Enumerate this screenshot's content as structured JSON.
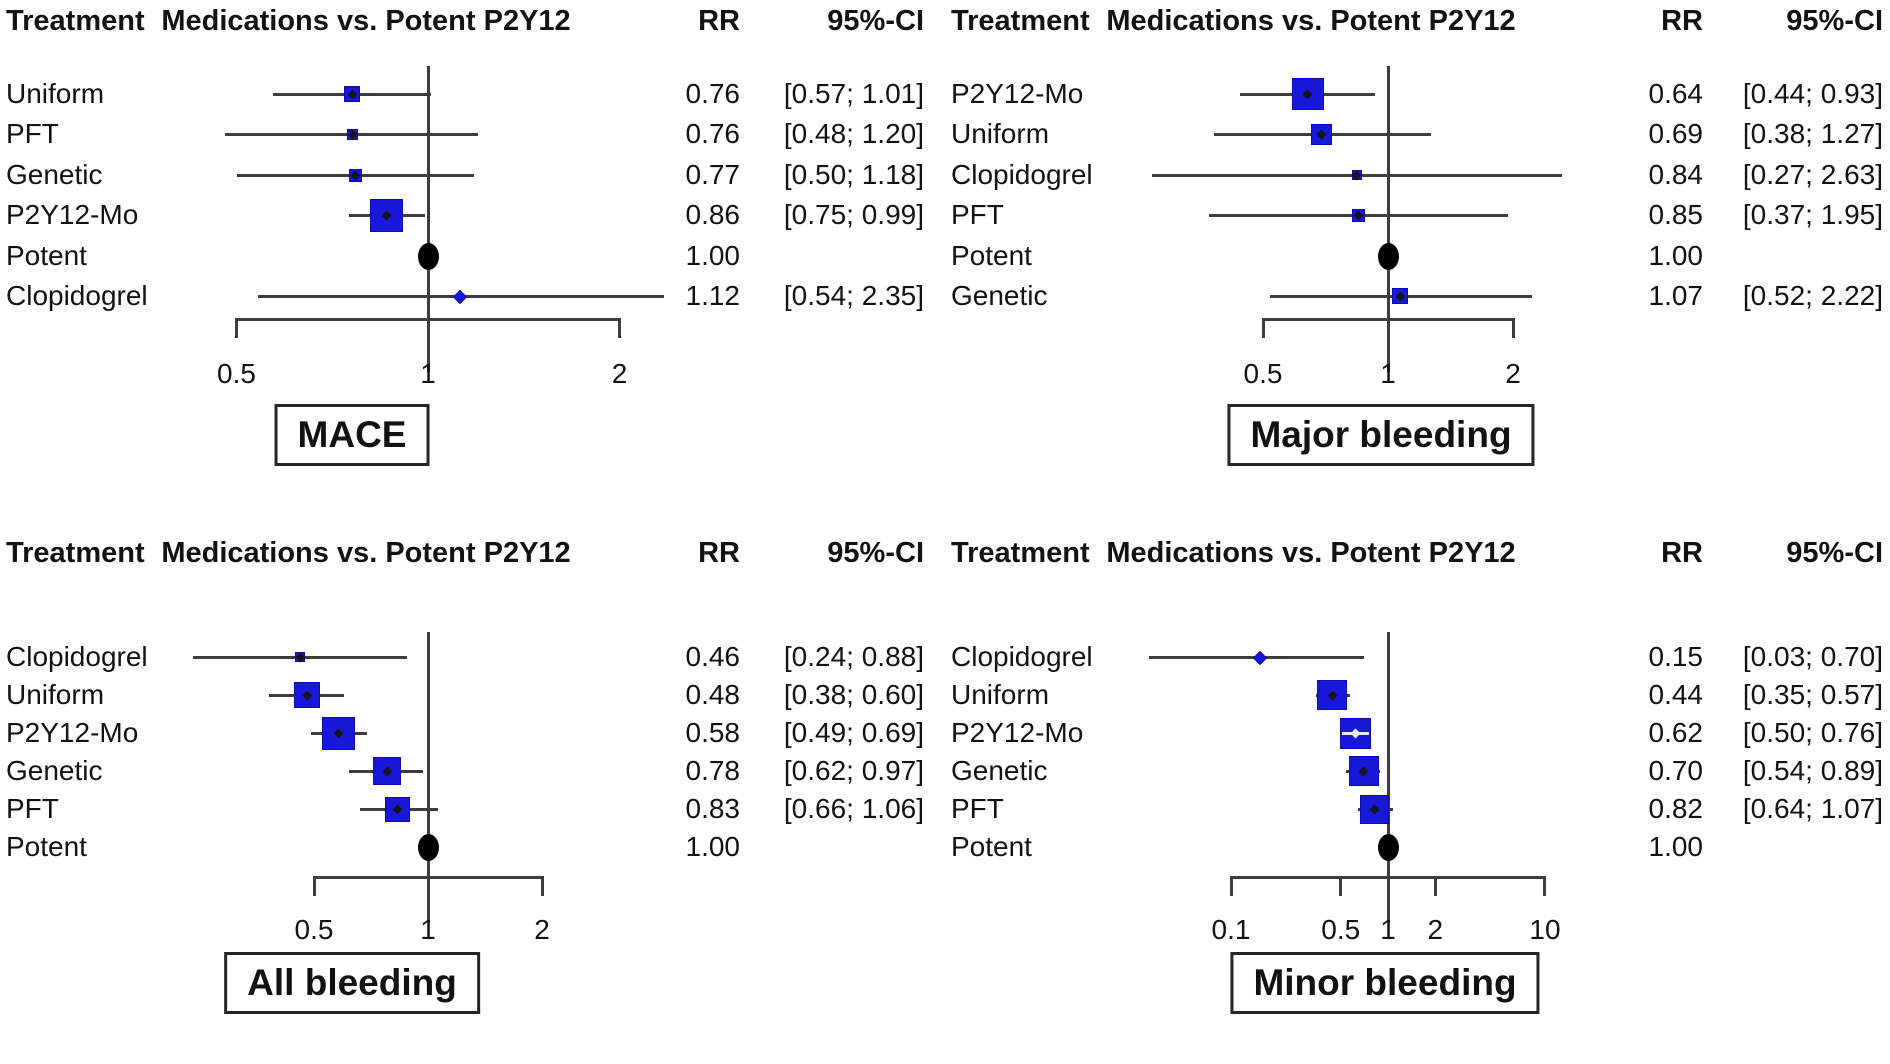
{
  "colors": {
    "marker_blue": "#1818d8",
    "marker_border": "#0c0cae",
    "line_gray": "#3d3d3d",
    "reference_black": "#000000",
    "text": "#121212",
    "background": "#ffffff"
  },
  "header": {
    "treatment": "Treatment",
    "comparison": "Medications vs. Potent P2Y12",
    "rr": "RR",
    "ci": "95%-CI"
  },
  "chart_data": [
    {
      "type": "forest",
      "title": "MACE",
      "axis": {
        "scale": "log",
        "ref_line": 1,
        "ticks": [
          0.5,
          1,
          2
        ],
        "tick_labels": [
          "0.5",
          "1",
          "2"
        ],
        "range": [
          0.5,
          2
        ]
      },
      "rows": [
        {
          "treatment": "Uniform",
          "rr": 0.76,
          "ci_low": 0.57,
          "ci_high": 1.01,
          "rr_label": "0.76",
          "ci_label": "[0.57; 1.01]",
          "marker_size": 16,
          "reference": false
        },
        {
          "treatment": "PFT",
          "rr": 0.76,
          "ci_low": 0.48,
          "ci_high": 1.2,
          "rr_label": "0.76",
          "ci_label": "[0.48; 1.20]",
          "marker_size": 11,
          "reference": false
        },
        {
          "treatment": "Genetic",
          "rr": 0.77,
          "ci_low": 0.5,
          "ci_high": 1.18,
          "rr_label": "0.77",
          "ci_label": "[0.50; 1.18]",
          "marker_size": 13,
          "reference": false
        },
        {
          "treatment": "P2Y12-Mo",
          "rr": 0.86,
          "ci_low": 0.75,
          "ci_high": 0.99,
          "rr_label": "0.86",
          "ci_label": "[0.75; 0.99]",
          "marker_size": 33,
          "reference": false
        },
        {
          "treatment": "Potent",
          "rr": 1.0,
          "ci_low": null,
          "ci_high": null,
          "rr_label": "1.00",
          "ci_label": "",
          "marker_size": null,
          "reference": true
        },
        {
          "treatment": "Clopidogrel",
          "rr": 1.12,
          "ci_low": 0.54,
          "ci_high": 2.35,
          "rr_label": "1.12",
          "ci_label": "[0.54; 2.35]",
          "marker_size": 8,
          "reference": false
        }
      ]
    },
    {
      "type": "forest",
      "title": "Major bleeding",
      "axis": {
        "scale": "log",
        "ref_line": 1,
        "ticks": [
          0.5,
          1,
          2
        ],
        "tick_labels": [
          "0.5",
          "1",
          "2"
        ],
        "range": [
          0.5,
          2
        ]
      },
      "rows": [
        {
          "treatment": "P2Y12-Mo",
          "rr": 0.64,
          "ci_low": 0.44,
          "ci_high": 0.93,
          "rr_label": "0.64",
          "ci_label": "[0.44; 0.93]",
          "marker_size": 32,
          "reference": false
        },
        {
          "treatment": "Uniform",
          "rr": 0.69,
          "ci_low": 0.38,
          "ci_high": 1.27,
          "rr_label": "0.69",
          "ci_label": "[0.38; 1.27]",
          "marker_size": 21,
          "reference": false
        },
        {
          "treatment": "Clopidogrel",
          "rr": 0.84,
          "ci_low": 0.27,
          "ci_high": 2.63,
          "rr_label": "0.84",
          "ci_label": "[0.27; 2.63]",
          "marker_size": 10,
          "reference": false
        },
        {
          "treatment": "PFT",
          "rr": 0.85,
          "ci_low": 0.37,
          "ci_high": 1.95,
          "rr_label": "0.85",
          "ci_label": "[0.37; 1.95]",
          "marker_size": 13,
          "reference": false
        },
        {
          "treatment": "Potent",
          "rr": 1.0,
          "ci_low": null,
          "ci_high": null,
          "rr_label": "1.00",
          "ci_label": "",
          "marker_size": null,
          "reference": true
        },
        {
          "treatment": "Genetic",
          "rr": 1.07,
          "ci_low": 0.52,
          "ci_high": 2.22,
          "rr_label": "1.07",
          "ci_label": "[0.52; 2.22]",
          "marker_size": 16,
          "reference": false
        }
      ]
    },
    {
      "type": "forest",
      "title": "All bleeding",
      "axis": {
        "scale": "log",
        "ref_line": 1,
        "ticks": [
          0.5,
          1,
          2
        ],
        "tick_labels": [
          "0.5",
          "1",
          "2"
        ],
        "range": [
          0.5,
          2
        ]
      },
      "rows": [
        {
          "treatment": "Clopidogrel",
          "rr": 0.46,
          "ci_low": 0.24,
          "ci_high": 0.88,
          "rr_label": "0.46",
          "ci_label": "[0.24; 0.88]",
          "marker_size": 10,
          "reference": false
        },
        {
          "treatment": "Uniform",
          "rr": 0.48,
          "ci_low": 0.38,
          "ci_high": 0.6,
          "rr_label": "0.48",
          "ci_label": "[0.38; 0.60]",
          "marker_size": 26,
          "reference": false
        },
        {
          "treatment": "P2Y12-Mo",
          "rr": 0.58,
          "ci_low": 0.49,
          "ci_high": 0.69,
          "rr_label": "0.58",
          "ci_label": "[0.49; 0.69]",
          "marker_size": 33,
          "reference": false
        },
        {
          "treatment": "Genetic",
          "rr": 0.78,
          "ci_low": 0.62,
          "ci_high": 0.97,
          "rr_label": "0.78",
          "ci_label": "[0.62; 0.97]",
          "marker_size": 28,
          "reference": false
        },
        {
          "treatment": "PFT",
          "rr": 0.83,
          "ci_low": 0.66,
          "ci_high": 1.06,
          "rr_label": "0.83",
          "ci_label": "[0.66; 1.06]",
          "marker_size": 25,
          "reference": false
        },
        {
          "treatment": "Potent",
          "rr": 1.0,
          "ci_low": null,
          "ci_high": null,
          "rr_label": "1.00",
          "ci_label": "",
          "marker_size": null,
          "reference": true
        }
      ]
    },
    {
      "type": "forest",
      "title": "Minor bleeding",
      "axis": {
        "scale": "log",
        "ref_line": 1,
        "ticks": [
          0.1,
          0.5,
          1,
          2,
          10
        ],
        "tick_labels": [
          "0.1",
          "0.5",
          "1",
          "2",
          "10"
        ],
        "range": [
          0.1,
          10
        ]
      },
      "rows": [
        {
          "treatment": "Clopidogrel",
          "rr": 0.15,
          "ci_low": 0.03,
          "ci_high": 0.7,
          "rr_label": "0.15",
          "ci_label": "[0.03; 0.70]",
          "marker_size": 8,
          "reference": false
        },
        {
          "treatment": "Uniform",
          "rr": 0.44,
          "ci_low": 0.35,
          "ci_high": 0.57,
          "rr_label": "0.44",
          "ci_label": "[0.35; 0.57]",
          "marker_size": 30,
          "reference": false
        },
        {
          "treatment": "P2Y12-Mo",
          "rr": 0.62,
          "ci_low": 0.5,
          "ci_high": 0.76,
          "rr_label": "0.62",
          "ci_label": "[0.50; 0.76]",
          "marker_size": 31,
          "reference": false
        },
        {
          "treatment": "Genetic",
          "rr": 0.7,
          "ci_low": 0.54,
          "ci_high": 0.89,
          "rr_label": "0.70",
          "ci_label": "[0.54; 0.89]",
          "marker_size": 30,
          "reference": false
        },
        {
          "treatment": "PFT",
          "rr": 0.82,
          "ci_low": 0.64,
          "ci_high": 1.07,
          "rr_label": "0.82",
          "ci_label": "[0.64; 1.07]",
          "marker_size": 29,
          "reference": false
        },
        {
          "treatment": "Potent",
          "rr": 1.0,
          "ci_low": null,
          "ci_high": null,
          "rr_label": "1.00",
          "ci_label": "",
          "marker_size": null,
          "reference": true
        }
      ]
    }
  ]
}
